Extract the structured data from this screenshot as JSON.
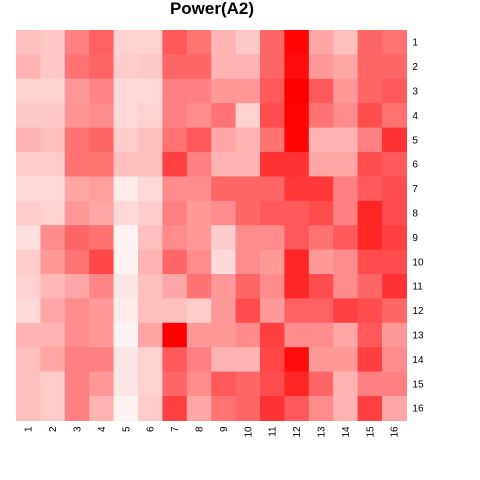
{
  "chart_data": {
    "type": "heatmap",
    "title": "Power(A2)",
    "xlabel": "",
    "ylabel": "",
    "x_categories": [
      "1",
      "2",
      "3",
      "4",
      "5",
      "6",
      "7",
      "8",
      "9",
      "10",
      "11",
      "12",
      "13",
      "14",
      "15",
      "16"
    ],
    "y_categories": [
      "1",
      "2",
      "3",
      "4",
      "5",
      "6",
      "7",
      "8",
      "9",
      "10",
      "11",
      "12",
      "13",
      "14",
      "15",
      "16"
    ],
    "color_scale": {
      "low": "#ffffff",
      "high": "#ff0000"
    },
    "value_range": [
      0,
      1
    ],
    "legend": "none",
    "grid": false,
    "values": [
      [
        0.25,
        0.22,
        0.5,
        0.62,
        0.18,
        0.18,
        0.65,
        0.55,
        0.3,
        0.22,
        0.6,
        0.98,
        0.35,
        0.25,
        0.6,
        0.55
      ],
      [
        0.3,
        0.22,
        0.55,
        0.6,
        0.2,
        0.22,
        0.6,
        0.6,
        0.3,
        0.3,
        0.6,
        0.95,
        0.4,
        0.35,
        0.6,
        0.6
      ],
      [
        0.18,
        0.18,
        0.4,
        0.48,
        0.15,
        0.15,
        0.5,
        0.5,
        0.4,
        0.4,
        0.65,
        1.0,
        0.65,
        0.4,
        0.6,
        0.65
      ],
      [
        0.22,
        0.22,
        0.42,
        0.45,
        0.15,
        0.18,
        0.5,
        0.45,
        0.55,
        0.18,
        0.7,
        0.98,
        0.55,
        0.45,
        0.7,
        0.55
      ],
      [
        0.3,
        0.25,
        0.55,
        0.6,
        0.2,
        0.25,
        0.55,
        0.65,
        0.35,
        0.3,
        0.55,
        0.98,
        0.3,
        0.3,
        0.5,
        0.8
      ],
      [
        0.2,
        0.2,
        0.55,
        0.55,
        0.25,
        0.25,
        0.75,
        0.5,
        0.3,
        0.3,
        0.8,
        0.8,
        0.35,
        0.35,
        0.7,
        0.65
      ],
      [
        0.15,
        0.15,
        0.35,
        0.38,
        0.08,
        0.15,
        0.45,
        0.45,
        0.6,
        0.6,
        0.6,
        0.78,
        0.78,
        0.5,
        0.65,
        0.7
      ],
      [
        0.2,
        0.18,
        0.4,
        0.35,
        0.15,
        0.2,
        0.5,
        0.4,
        0.45,
        0.6,
        0.65,
        0.65,
        0.7,
        0.5,
        0.85,
        0.7
      ],
      [
        0.12,
        0.45,
        0.6,
        0.55,
        0.05,
        0.25,
        0.45,
        0.4,
        0.2,
        0.45,
        0.45,
        0.65,
        0.55,
        0.65,
        0.85,
        0.75
      ],
      [
        0.2,
        0.4,
        0.55,
        0.72,
        0.05,
        0.3,
        0.6,
        0.45,
        0.15,
        0.45,
        0.4,
        0.85,
        0.4,
        0.45,
        0.7,
        0.7
      ],
      [
        0.18,
        0.28,
        0.35,
        0.48,
        0.1,
        0.25,
        0.35,
        0.55,
        0.4,
        0.6,
        0.45,
        0.85,
        0.7,
        0.45,
        0.6,
        0.8
      ],
      [
        0.15,
        0.35,
        0.45,
        0.4,
        0.08,
        0.25,
        0.25,
        0.2,
        0.4,
        0.7,
        0.4,
        0.62,
        0.62,
        0.75,
        0.7,
        0.6
      ],
      [
        0.3,
        0.3,
        0.45,
        0.4,
        0.05,
        0.35,
        1.0,
        0.4,
        0.4,
        0.45,
        0.75,
        0.45,
        0.45,
        0.35,
        0.65,
        0.4
      ],
      [
        0.25,
        0.35,
        0.5,
        0.5,
        0.1,
        0.18,
        0.65,
        0.5,
        0.3,
        0.3,
        0.72,
        0.95,
        0.4,
        0.4,
        0.75,
        0.45
      ],
      [
        0.25,
        0.2,
        0.5,
        0.4,
        0.1,
        0.18,
        0.6,
        0.45,
        0.65,
        0.6,
        0.7,
        0.85,
        0.6,
        0.3,
        0.5,
        0.5
      ],
      [
        0.25,
        0.2,
        0.5,
        0.3,
        0.05,
        0.2,
        0.75,
        0.35,
        0.55,
        0.6,
        0.8,
        0.65,
        0.45,
        0.3,
        0.75,
        0.35
      ]
    ]
  }
}
